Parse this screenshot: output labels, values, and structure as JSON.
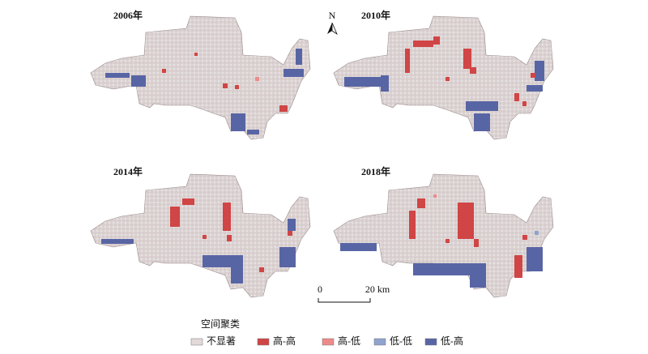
{
  "panels": [
    {
      "label": "2006年"
    },
    {
      "label": "2010年"
    },
    {
      "label": "2014年"
    },
    {
      "label": "2018年"
    }
  ],
  "north": "N",
  "scale": {
    "start": "0",
    "end": "20 km"
  },
  "legend": {
    "title": "空间聚类",
    "items": [
      {
        "name": "不显著",
        "color": "#e4d9d9"
      },
      {
        "name": "高-高",
        "color": "#d04545"
      },
      {
        "name": "高-低",
        "color": "#ee8a8a"
      },
      {
        "name": "低-低",
        "color": "#8fa3cf"
      },
      {
        "name": "低-高",
        "color": "#5865a5"
      }
    ]
  }
}
